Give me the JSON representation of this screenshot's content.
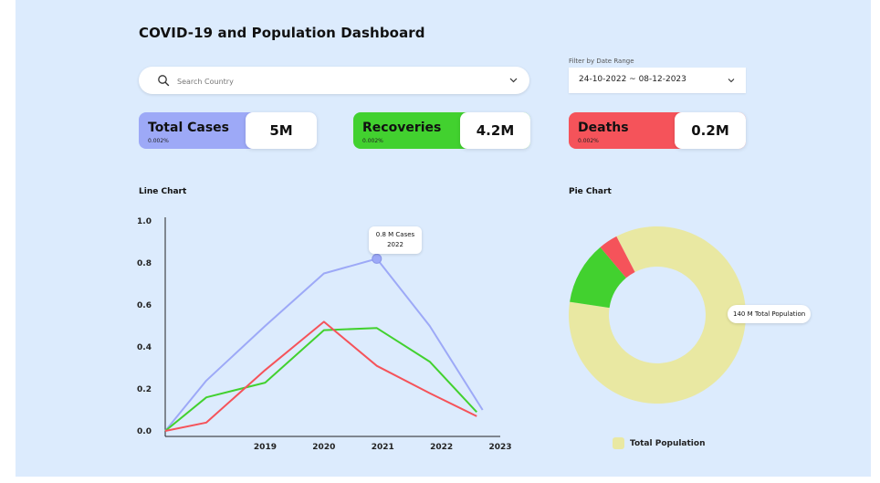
{
  "header": {
    "title": "COVID-19 and Population Dashboard"
  },
  "search": {
    "placeholder": "Search Country",
    "icon": "search-icon"
  },
  "filter": {
    "label": "Filter by Date Range",
    "value": "24-10-2022 ~ 08-12-2023"
  },
  "cards": [
    {
      "label": "Total Cases",
      "percent": "0.002%",
      "value": "5M",
      "color": "#9da9f7"
    },
    {
      "label": "Recoveries",
      "percent": "0.002%",
      "value": "4.2M",
      "color": "#42d12f"
    },
    {
      "label": "Deaths",
      "percent": "0.002%",
      "value": "0.2M",
      "color": "#f5535a"
    }
  ],
  "line_chart": {
    "title": "Line Chart",
    "tooltip_line1": "0.8 M Cases",
    "tooltip_line2": "2022"
  },
  "pie_chart": {
    "title": "Pie Chart",
    "slice_label": "140 M Total Population",
    "legend_label": "Total Population"
  },
  "chart_data": [
    {
      "type": "line",
      "title": "Line Chart",
      "x": [
        2018,
        2018.7,
        2019.5,
        2020.3,
        2021.0,
        2021.6,
        2022.4,
        2023.0
      ],
      "x_tick_labels": [
        "2019",
        "2020",
        "2021",
        "2022",
        "2023"
      ],
      "x_ticks": [
        2019,
        2020,
        2021,
        2022,
        2023
      ],
      "xlim": [
        2017.3,
        2023.0
      ],
      "ylim": [
        0,
        1.0
      ],
      "y_ticks": [
        0.0,
        0.2,
        0.4,
        0.6,
        0.8,
        1.0
      ],
      "grid": false,
      "series": [
        {
          "color": "#9da9f7",
          "points": [
            [
              2017.3,
              0.0
            ],
            [
              2018.0,
              0.24
            ],
            [
              2019.0,
              0.5
            ],
            [
              2020.0,
              0.75
            ],
            [
              2020.9,
              0.82
            ],
            [
              2021.8,
              0.5
            ],
            [
              2022.7,
              0.1
            ]
          ]
        },
        {
          "color": "#42d12f",
          "points": [
            [
              2017.3,
              0.0
            ],
            [
              2018.0,
              0.16
            ],
            [
              2019.0,
              0.23
            ],
            [
              2020.0,
              0.48
            ],
            [
              2020.9,
              0.49
            ],
            [
              2021.8,
              0.33
            ],
            [
              2022.6,
              0.09
            ]
          ]
        },
        {
          "color": "#f5535a",
          "points": [
            [
              2017.3,
              0.0
            ],
            [
              2018.0,
              0.04
            ],
            [
              2019.0,
              0.29
            ],
            [
              2020.0,
              0.52
            ],
            [
              2020.9,
              0.31
            ],
            [
              2021.8,
              0.18
            ],
            [
              2022.6,
              0.07
            ]
          ]
        }
      ],
      "highlight": {
        "series": 0,
        "x": 2020.9,
        "y": 0.82
      }
    },
    {
      "type": "pie",
      "title": "Pie Chart",
      "donut": true,
      "slices": [
        {
          "name": "Total Population",
          "value": 0.85,
          "color": "#e9e8a2"
        },
        {
          "name": "",
          "value": 0.115,
          "color": "#42d12f"
        },
        {
          "name": "",
          "value": 0.035,
          "color": "#f5535a"
        }
      ]
    }
  ]
}
